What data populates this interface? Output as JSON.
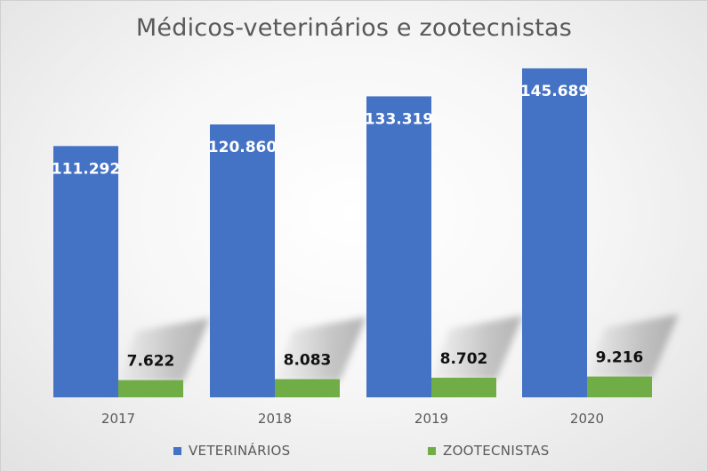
{
  "chart_data": {
    "type": "bar",
    "title": "Médicos-veterinários e zootecnistas",
    "categories": [
      "2017",
      "2018",
      "2019",
      "2020"
    ],
    "series": [
      {
        "name": "VETERINÁRIOS",
        "color": "#4472c4",
        "values": [
          111292,
          120860,
          133319,
          145689
        ],
        "labels": [
          "111.292",
          "120.860",
          "133.319",
          "145.689"
        ]
      },
      {
        "name": "ZOOTECNISTAS",
        "color": "#70ad47",
        "values": [
          7622,
          8083,
          8702,
          9216
        ],
        "labels": [
          "7.622",
          "8.083",
          "8.702",
          "9.216"
        ]
      }
    ],
    "xlabel": "",
    "ylabel": "",
    "ylim": [
      0,
      150000
    ],
    "grid": false,
    "legend": "bottom",
    "style": "3d-shadow"
  }
}
